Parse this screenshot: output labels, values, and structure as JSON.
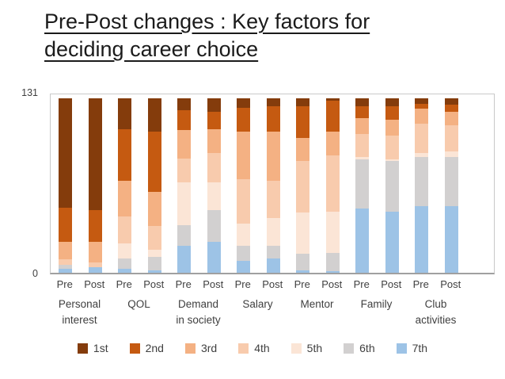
{
  "page": {
    "title": "Pre-Post changes : Key factors for deciding career choice"
  },
  "chart_data": {
    "type": "bar",
    "stacked": true,
    "title": "Pre-Post changes : Key factors for deciding career choice",
    "xlabel": "",
    "ylabel": "",
    "ylim": [
      0,
      131
    ],
    "yticks": {
      "max": "131",
      "min": "0"
    },
    "grid": false,
    "legend_position": "bottom",
    "stack_order_top_to_bottom": [
      "1st",
      "2nd",
      "3rd",
      "4th",
      "5th",
      "6th",
      "7th"
    ],
    "legend": [
      {
        "label": "1st",
        "color": "#843C0C"
      },
      {
        "label": "2nd",
        "color": "#C55A11"
      },
      {
        "label": "3rd",
        "color": "#F4B183"
      },
      {
        "label": "4th",
        "color": "#F8CBAD"
      },
      {
        "label": "5th",
        "color": "#FBE5D6"
      },
      {
        "label": "6th",
        "color": "#D2D0D0"
      },
      {
        "label": "7th",
        "color": "#9DC3E6"
      }
    ],
    "groups": [
      {
        "label": "Personal\ninterest",
        "bars": [
          {
            "name": "Pre",
            "stack": [
              82,
              26,
              13,
              4,
              0,
              3,
              3
            ]
          },
          {
            "name": "Post",
            "stack": [
              84,
              24,
              15,
              4,
              0,
              0,
              4
            ]
          }
        ]
      },
      {
        "label": "QOL",
        "bars": [
          {
            "name": "Pre",
            "stack": [
              23,
              39,
              27,
              20,
              11,
              8,
              3
            ]
          },
          {
            "name": "Post",
            "stack": [
              25,
              45,
              26,
              18,
              5,
              10,
              2
            ]
          }
        ]
      },
      {
        "label": "Demand\nin society",
        "bars": [
          {
            "name": "Pre",
            "stack": [
              9,
              15,
              21,
              18,
              32,
              16,
              20
            ]
          },
          {
            "name": "Post",
            "stack": [
              10,
              13,
              18,
              22,
              21,
              24,
              23
            ]
          }
        ]
      },
      {
        "label": "Salary",
        "bars": [
          {
            "name": "Pre",
            "stack": [
              7,
              18,
              36,
              33,
              17,
              11,
              9
            ]
          },
          {
            "name": "Post",
            "stack": [
              6,
              19,
              37,
              28,
              21,
              9,
              11
            ]
          }
        ]
      },
      {
        "label": "Mentor",
        "bars": [
          {
            "name": "Pre",
            "stack": [
              6,
              24,
              17,
              39,
              31,
              12,
              2
            ]
          },
          {
            "name": "Post",
            "stack": [
              2,
              23,
              18,
              42,
              31,
              14,
              1
            ]
          }
        ]
      },
      {
        "label": "Family",
        "bars": [
          {
            "name": "Pre",
            "stack": [
              6,
              9,
              12,
              17,
              2,
              37,
              48
            ]
          },
          {
            "name": "Post",
            "stack": [
              6,
              10,
              12,
              18,
              1,
              38,
              46
            ]
          }
        ]
      },
      {
        "label": "Club\nactivities",
        "bars": [
          {
            "name": "Pre",
            "stack": [
              4,
              4,
              11,
              22,
              3,
              37,
              50
            ]
          },
          {
            "name": "Post",
            "stack": [
              5,
              5,
              10,
              20,
              4,
              37,
              50
            ]
          }
        ]
      }
    ]
  }
}
